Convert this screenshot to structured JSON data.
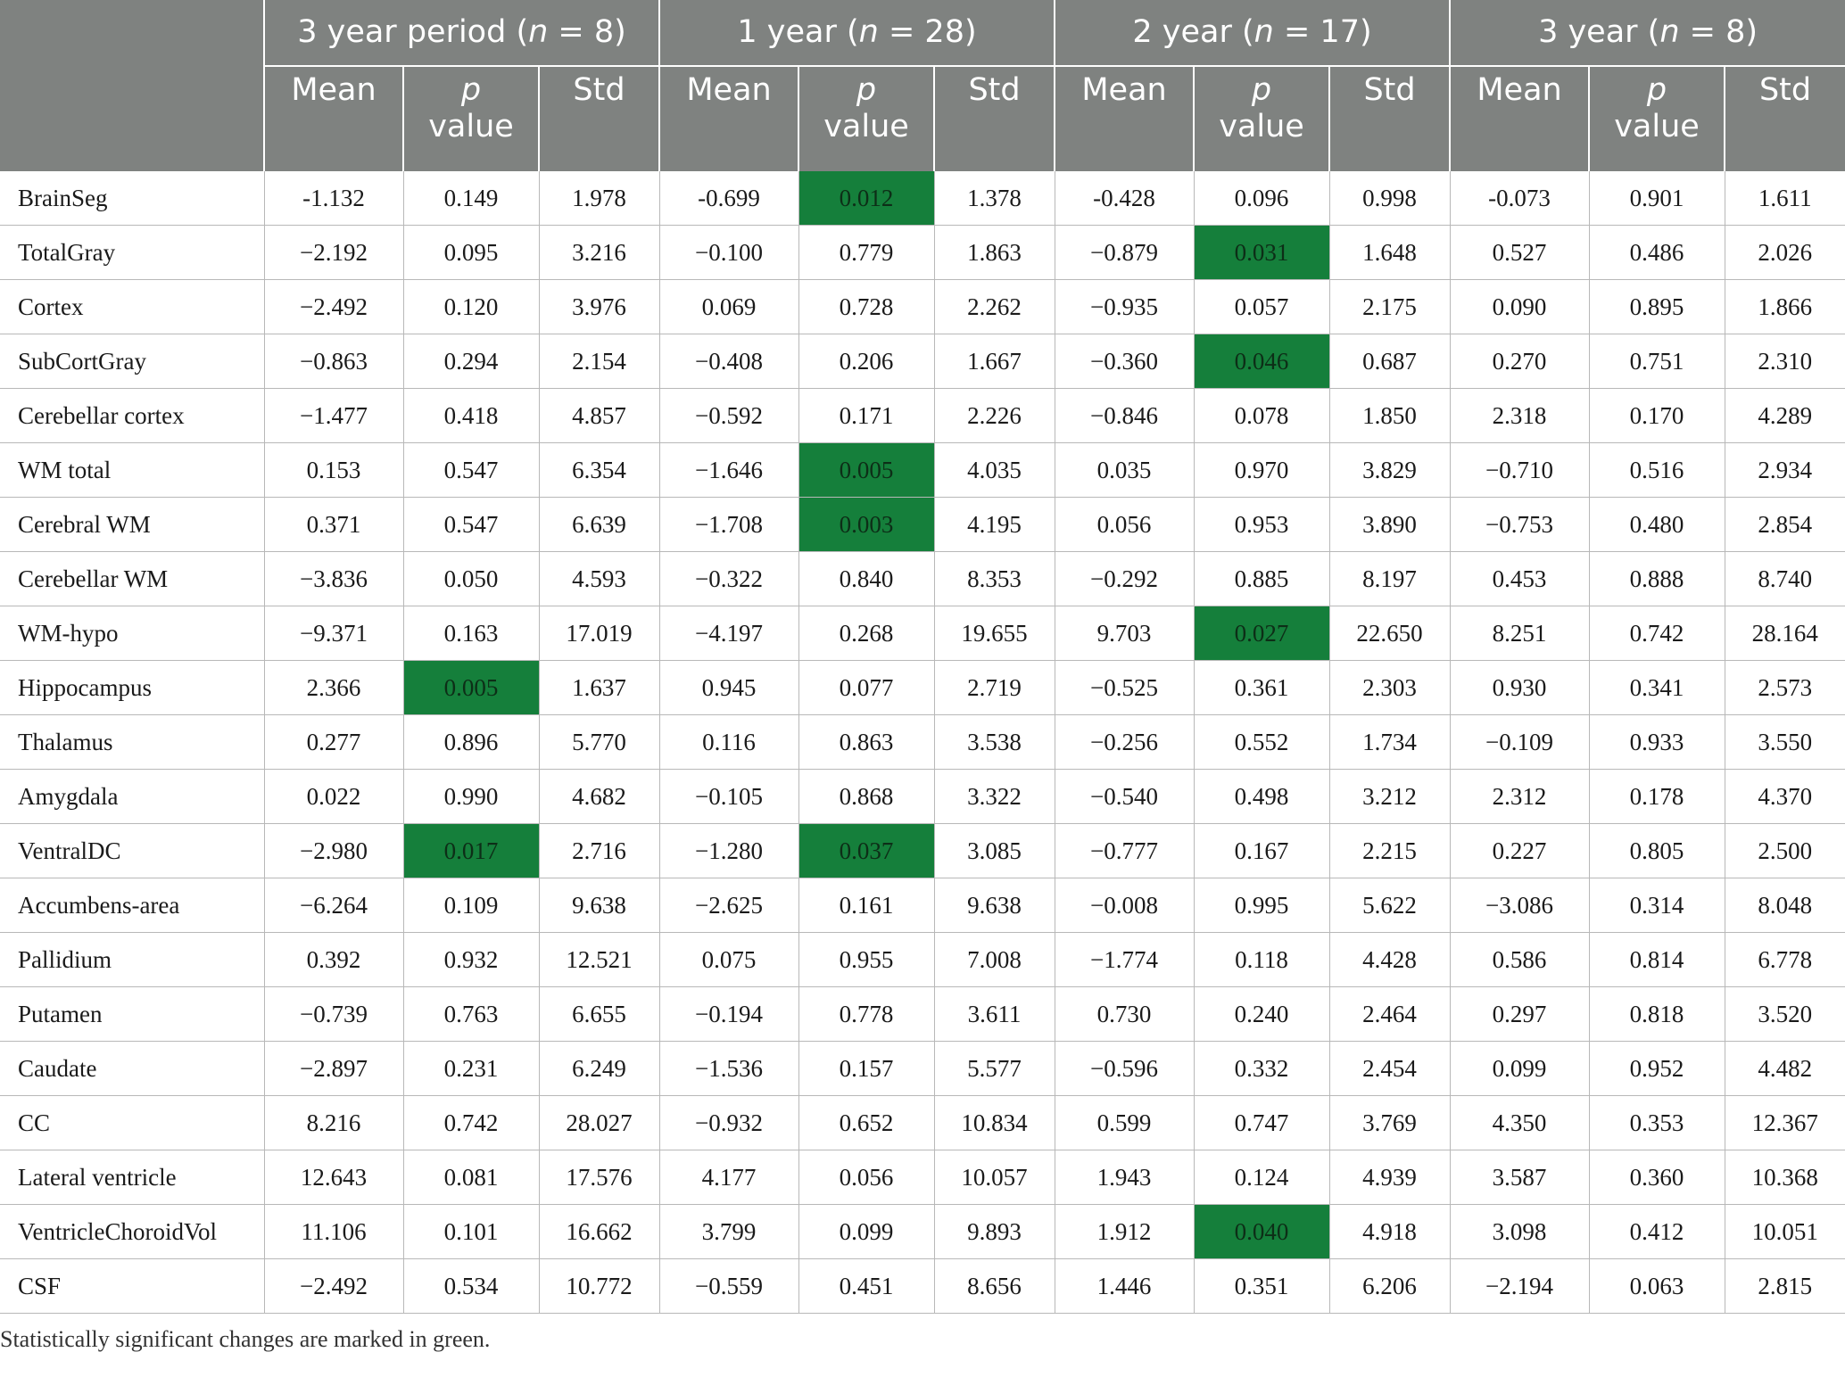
{
  "header": {
    "groups": [
      {
        "label": "3 year period (",
        "n_var": "n",
        "n_rest": " = 8)"
      },
      {
        "label": "1 year (",
        "n_var": "n",
        "n_rest": " = 28)"
      },
      {
        "label": "2 year (",
        "n_var": "n",
        "n_rest": " = 17)"
      },
      {
        "label": "3 year (",
        "n_var": "n",
        "n_rest": " = 8)"
      }
    ],
    "sub": {
      "mean": "Mean",
      "p1": "p",
      "p2": "value",
      "std": "Std"
    }
  },
  "rows": [
    {
      "label": "BrainSeg",
      "values": [
        "-1.132",
        "0.149",
        "1.978",
        "-0.699",
        "0.012",
        "1.378",
        "-0.428",
        "0.096",
        "0.998",
        "-0.073",
        "0.901",
        "1.611"
      ],
      "sig": [
        4
      ]
    },
    {
      "label": "TotalGray",
      "values": [
        "−2.192",
        "0.095",
        "3.216",
        "−0.100",
        "0.779",
        "1.863",
        "−0.879",
        "0.031",
        "1.648",
        "0.527",
        "0.486",
        "2.026"
      ],
      "sig": [
        7
      ]
    },
    {
      "label": "Cortex",
      "values": [
        "−2.492",
        "0.120",
        "3.976",
        "0.069",
        "0.728",
        "2.262",
        "−0.935",
        "0.057",
        "2.175",
        "0.090",
        "0.895",
        "1.866"
      ],
      "sig": []
    },
    {
      "label": "SubCortGray",
      "values": [
        "−0.863",
        "0.294",
        "2.154",
        "−0.408",
        "0.206",
        "1.667",
        "−0.360",
        "0.046",
        "0.687",
        "0.270",
        "0.751",
        "2.310"
      ],
      "sig": [
        7
      ]
    },
    {
      "label": "Cerebellar cortex",
      "values": [
        "−1.477",
        "0.418",
        "4.857",
        "−0.592",
        "0.171",
        "2.226",
        "−0.846",
        "0.078",
        "1.850",
        "2.318",
        "0.170",
        "4.289"
      ],
      "sig": []
    },
    {
      "label": "WM total",
      "values": [
        "0.153",
        "0.547",
        "6.354",
        "−1.646",
        "0.005",
        "4.035",
        "0.035",
        "0.970",
        "3.829",
        "−0.710",
        "0.516",
        "2.934"
      ],
      "sig": [
        4
      ]
    },
    {
      "label": "Cerebral WM",
      "values": [
        "0.371",
        "0.547",
        "6.639",
        "−1.708",
        "0.003",
        "4.195",
        "0.056",
        "0.953",
        "3.890",
        "−0.753",
        "0.480",
        "2.854"
      ],
      "sig": [
        4
      ]
    },
    {
      "label": "Cerebellar WM",
      "values": [
        "−3.836",
        "0.050",
        "4.593",
        "−0.322",
        "0.840",
        "8.353",
        "−0.292",
        "0.885",
        "8.197",
        "0.453",
        "0.888",
        "8.740"
      ],
      "sig": []
    },
    {
      "label": "WM-hypo",
      "values": [
        "−9.371",
        "0.163",
        "17.019",
        "−4.197",
        "0.268",
        "19.655",
        "9.703",
        "0.027",
        "22.650",
        "8.251",
        "0.742",
        "28.164"
      ],
      "sig": [
        7
      ]
    },
    {
      "label": "Hippocampus",
      "values": [
        "2.366",
        "0.005",
        "1.637",
        "0.945",
        "0.077",
        "2.719",
        "−0.525",
        "0.361",
        "2.303",
        "0.930",
        "0.341",
        "2.573"
      ],
      "sig": [
        1
      ]
    },
    {
      "label": "Thalamus",
      "values": [
        "0.277",
        "0.896",
        "5.770",
        "0.116",
        "0.863",
        "3.538",
        "−0.256",
        "0.552",
        "1.734",
        "−0.109",
        "0.933",
        "3.550"
      ],
      "sig": []
    },
    {
      "label": "Amygdala",
      "values": [
        "0.022",
        "0.990",
        "4.682",
        "−0.105",
        "0.868",
        "3.322",
        "−0.540",
        "0.498",
        "3.212",
        "2.312",
        "0.178",
        "4.370"
      ],
      "sig": []
    },
    {
      "label": "VentralDC",
      "values": [
        "−2.980",
        "0.017",
        "2.716",
        "−1.280",
        "0.037",
        "3.085",
        "−0.777",
        "0.167",
        "2.215",
        "0.227",
        "0.805",
        "2.500"
      ],
      "sig": [
        1,
        4
      ]
    },
    {
      "label": "Accumbens-area",
      "values": [
        "−6.264",
        "0.109",
        "9.638",
        "−2.625",
        "0.161",
        "9.638",
        "−0.008",
        "0.995",
        "5.622",
        "−3.086",
        "0.314",
        "8.048"
      ],
      "sig": []
    },
    {
      "label": "Pallidium",
      "values": [
        "0.392",
        "0.932",
        "12.521",
        "0.075",
        "0.955",
        "7.008",
        "−1.774",
        "0.118",
        "4.428",
        "0.586",
        "0.814",
        "6.778"
      ],
      "sig": []
    },
    {
      "label": "Putamen",
      "values": [
        "−0.739",
        "0.763",
        "6.655",
        "−0.194",
        "0.778",
        "3.611",
        "0.730",
        "0.240",
        "2.464",
        "0.297",
        "0.818",
        "3.520"
      ],
      "sig": []
    },
    {
      "label": "Caudate",
      "values": [
        "−2.897",
        "0.231",
        "6.249",
        "−1.536",
        "0.157",
        "5.577",
        "−0.596",
        "0.332",
        "2.454",
        "0.099",
        "0.952",
        "4.482"
      ],
      "sig": []
    },
    {
      "label": "CC",
      "values": [
        "8.216",
        "0.742",
        "28.027",
        "−0.932",
        "0.652",
        "10.834",
        "0.599",
        "0.747",
        "3.769",
        "4.350",
        "0.353",
        "12.367"
      ],
      "sig": []
    },
    {
      "label": "Lateral ventricle",
      "values": [
        "12.643",
        "0.081",
        "17.576",
        "4.177",
        "0.056",
        "10.057",
        "1.943",
        "0.124",
        "4.939",
        "3.587",
        "0.360",
        "10.368"
      ],
      "sig": []
    },
    {
      "label": "VentricleChoroidVol",
      "values": [
        "11.106",
        "0.101",
        "16.662",
        "3.799",
        "0.099",
        "9.893",
        "1.912",
        "0.040",
        "4.918",
        "3.098",
        "0.412",
        "10.051"
      ],
      "sig": [
        7
      ]
    },
    {
      "label": "CSF",
      "values": [
        "−2.492",
        "0.534",
        "10.772",
        "−0.559",
        "0.451",
        "8.656",
        "1.446",
        "0.351",
        "6.206",
        "−2.194",
        "0.063",
        "2.815"
      ],
      "sig": []
    }
  ],
  "colors": {
    "header_bg": "#7f8280",
    "significant": "#157f3b"
  },
  "footnote": "Statistically significant changes are marked in green."
}
